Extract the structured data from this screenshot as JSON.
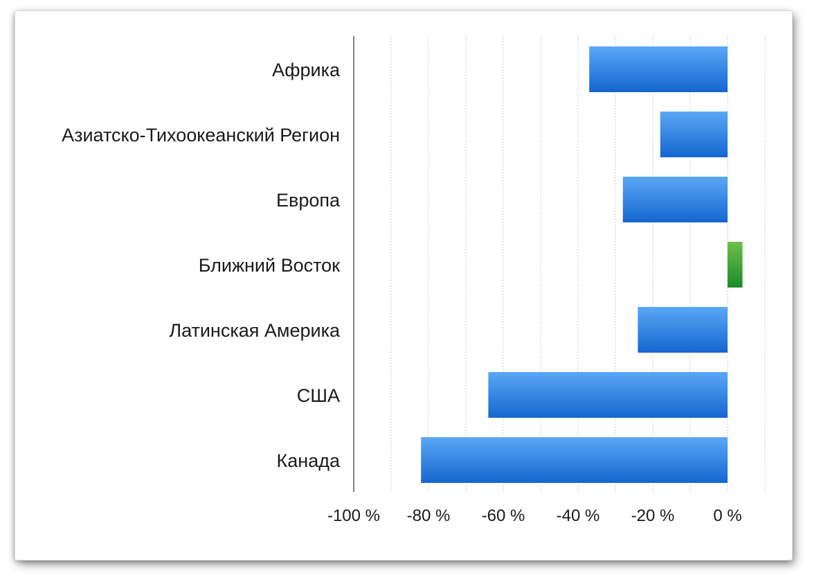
{
  "chart_data": {
    "type": "bar",
    "orientation": "horizontal",
    "categories": [
      "Африка",
      "Азиатско-Тихоокеанский Регион",
      "Европа",
      "Ближний Восток",
      "Латинская Америка",
      "США",
      "Канада"
    ],
    "values": [
      -37,
      -18,
      -28,
      4,
      -24,
      -64,
      -82
    ],
    "xlim": [
      -100,
      10
    ],
    "x_ticks": [
      -100,
      -80,
      -60,
      -40,
      -20,
      0
    ],
    "x_tick_labels": [
      "-100 %",
      "-80 %",
      "-60 %",
      "-40 %",
      "-20 %",
      "0 %"
    ],
    "grid": true,
    "title": "",
    "xlabel": "",
    "ylabel": "",
    "colors": {
      "negative_top": "#5aa8f5",
      "negative_bottom": "#1566d0",
      "positive_top": "#6cc04a",
      "positive_bottom": "#1e8a2a"
    }
  }
}
